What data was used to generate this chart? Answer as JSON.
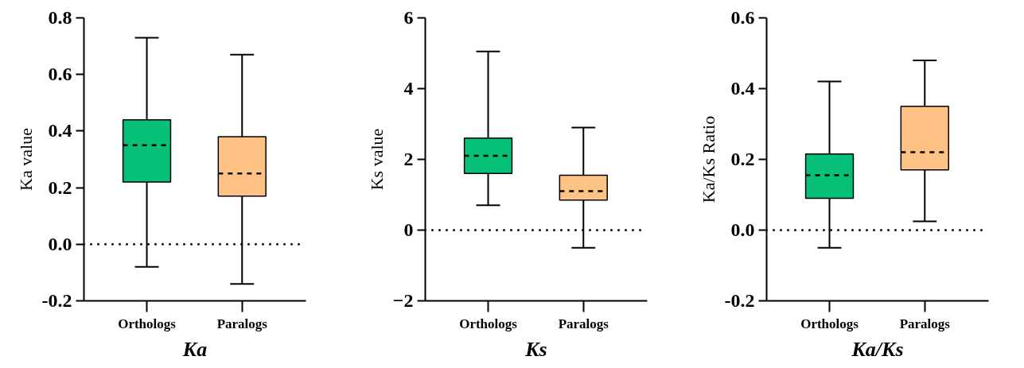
{
  "chart_data": [
    {
      "type": "box",
      "categories": [
        "Orthologs",
        "Paralogs"
      ],
      "xlabel": "Ka",
      "ylabel": "Ka value",
      "colors": [
        "#06bf78",
        "#ffc285"
      ],
      "boxes": [
        {
          "low": -0.08,
          "q1": 0.22,
          "median": 0.35,
          "q3": 0.44,
          "high": 0.73
        },
        {
          "low": -0.14,
          "q1": 0.17,
          "median": 0.25,
          "q3": 0.38,
          "high": 0.67
        }
      ],
      "ylim": [
        -0.2,
        0.8
      ],
      "yticks": [
        {
          "value": -0.2,
          "label": "-0.2"
        },
        {
          "value": 0,
          "label": "0.0"
        },
        {
          "value": 0.2,
          "label": "0.2"
        },
        {
          "value": 0.4,
          "label": "0.4"
        },
        {
          "value": 0.6,
          "label": "0.6"
        },
        {
          "value": 0.8,
          "label": "0.8"
        }
      ],
      "ref_lines": [
        {
          "axis": "y",
          "value": 0,
          "line_style": "dotted",
          "color": "#000000"
        }
      ]
    },
    {
      "type": "box",
      "categories": [
        "Orthologs",
        "Paralogs"
      ],
      "xlabel": "Ks",
      "ylabel": "Ks value",
      "colors": [
        "#06bf78",
        "#ffc285"
      ],
      "boxes": [
        {
          "low": 0.7,
          "q1": 1.6,
          "median": 2.1,
          "q3": 2.6,
          "high": 5.05
        },
        {
          "low": -0.5,
          "q1": 0.85,
          "median": 1.1,
          "q3": 1.55,
          "high": 2.9
        }
      ],
      "ylim": [
        -2,
        6
      ],
      "yticks": [
        -2,
        0,
        2,
        4,
        6
      ],
      "ref_lines": [
        {
          "axis": "y",
          "value": 0,
          "line_style": "dotted",
          "color": "#000000"
        }
      ]
    },
    {
      "type": "box",
      "categories": [
        "Orthologs",
        "Paralogs"
      ],
      "xlabel": "Ka/Ks",
      "ylabel": "Ka/Ks Ratio",
      "colors": [
        "#06bf78",
        "#ffc285"
      ],
      "boxes": [
        {
          "low": -0.05,
          "q1": 0.09,
          "median": 0.155,
          "q3": 0.215,
          "high": 0.42
        },
        {
          "low": 0.025,
          "q1": 0.17,
          "median": 0.22,
          "q3": 0.35,
          "high": 0.48
        }
      ],
      "ylim": [
        -0.2,
        0.6
      ],
      "yticks": [
        {
          "value": -0.2,
          "label": "-0.2"
        },
        {
          "value": 0,
          "label": "0.0"
        },
        {
          "value": 0.2,
          "label": "0.2"
        },
        {
          "value": 0.4,
          "label": "0.4"
        },
        {
          "value": 0.6,
          "label": "0.6"
        }
      ],
      "ref_lines": [
        {
          "axis": "y",
          "value": 0,
          "line_style": "dotted",
          "color": "#000000"
        }
      ]
    }
  ]
}
